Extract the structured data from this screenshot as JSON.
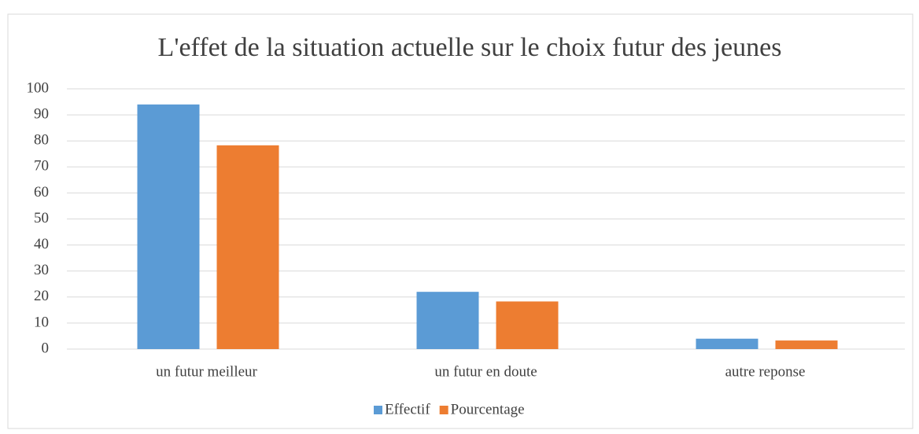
{
  "chart_data": {
    "type": "bar",
    "title": "L'effet de la situation actuelle sur le choix futur des jeunes",
    "categories": [
      "un futur meilleur",
      "un futur en doute",
      "autre reponse"
    ],
    "series": [
      {
        "name": "Effectif",
        "color": "#5b9bd5",
        "values": [
          94,
          22,
          4
        ]
      },
      {
        "name": "Pourcentage",
        "color": "#ed7d31",
        "values": [
          78.3,
          18.3,
          3.3
        ]
      }
    ],
    "ylim": [
      0,
      100
    ],
    "yticks": [
      0,
      10,
      20,
      30,
      40,
      50,
      60,
      70,
      80,
      90,
      100
    ],
    "grid": true,
    "legend": "bottom"
  }
}
